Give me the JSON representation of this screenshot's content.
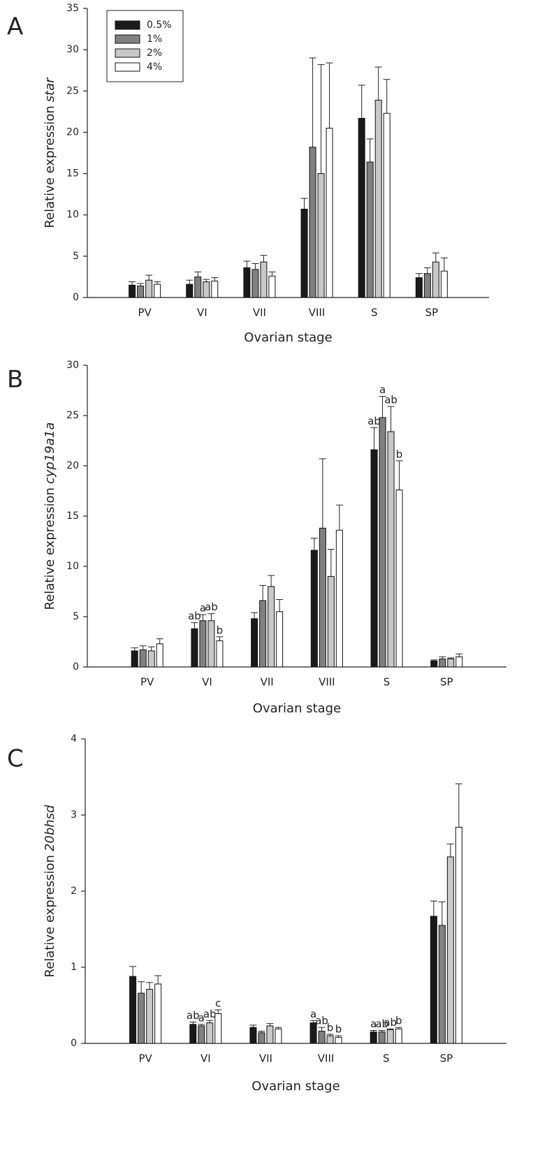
{
  "chart_data": [
    {
      "type": "bar",
      "panel": "A",
      "ylabel": "Relative expression",
      "ylabel_italic": "star",
      "xlabel": "Ovarian stage",
      "categories": [
        "PV",
        "VI",
        "VII",
        "VIII",
        "S",
        "SP"
      ],
      "ylim": [
        0,
        35
      ],
      "yticks": [
        0,
        5,
        10,
        15,
        20,
        25,
        30,
        35
      ],
      "legend": "upper left",
      "series": [
        {
          "name": "0.5%",
          "color": "#1a1a1a",
          "values": [
            1.5,
            1.6,
            3.6,
            10.7,
            21.7,
            2.4
          ],
          "errors": [
            0.4,
            0.5,
            0.8,
            1.3,
            4.0,
            0.5
          ]
        },
        {
          "name": "1%",
          "color": "#808080",
          "values": [
            1.4,
            2.5,
            3.4,
            18.2,
            16.4,
            2.9
          ],
          "errors": [
            0.3,
            0.6,
            0.7,
            10.8,
            2.8,
            0.7
          ]
        },
        {
          "name": "2%",
          "color": "#c8c8c8",
          "values": [
            2.1,
            1.9,
            4.3,
            15.0,
            23.9,
            4.3
          ],
          "errors": [
            0.6,
            0.3,
            0.8,
            13.2,
            4.0,
            1.1
          ]
        },
        {
          "name": "4%",
          "color": "#ffffff",
          "values": [
            1.6,
            2.0,
            2.6,
            20.5,
            22.3,
            3.2
          ],
          "errors": [
            0.3,
            0.4,
            0.5,
            7.9,
            4.1,
            1.6
          ]
        }
      ]
    },
    {
      "type": "bar",
      "panel": "B",
      "ylabel": "Relative expression",
      "ylabel_italic": "cyp19a1a",
      "xlabel": "Ovarian stage",
      "categories": [
        "PV",
        "VI",
        "VII",
        "VIII",
        "S",
        "SP"
      ],
      "ylim": [
        0,
        30
      ],
      "yticks": [
        0,
        5,
        10,
        15,
        20,
        25,
        30
      ],
      "series": [
        {
          "color": "#1a1a1a",
          "values": [
            1.6,
            3.8,
            4.8,
            11.6,
            21.6,
            0.6
          ],
          "errors": [
            0.3,
            0.6,
            0.6,
            1.2,
            2.2,
            0.1
          ],
          "letters": [
            null,
            "ab",
            null,
            null,
            "ab",
            null
          ]
        },
        {
          "color": "#808080",
          "values": [
            1.7,
            4.6,
            6.6,
            13.8,
            24.8,
            0.8
          ],
          "errors": [
            0.4,
            0.6,
            1.5,
            6.9,
            2.1,
            0.2
          ],
          "letters": [
            null,
            "a",
            null,
            null,
            "a",
            null
          ]
        },
        {
          "color": "#c8c8c8",
          "values": [
            1.6,
            4.6,
            8.0,
            9.0,
            23.4,
            0.8
          ],
          "errors": [
            0.4,
            0.7,
            1.1,
            2.7,
            2.5,
            0.1
          ],
          "letters": [
            null,
            "ab",
            null,
            null,
            "ab",
            null
          ]
        },
        {
          "color": "#ffffff",
          "values": [
            2.3,
            2.6,
            5.5,
            13.6,
            17.6,
            1.0
          ],
          "errors": [
            0.5,
            0.4,
            1.2,
            2.5,
            2.9,
            0.3
          ],
          "letters": [
            null,
            "b",
            null,
            null,
            "b",
            null
          ]
        }
      ]
    },
    {
      "type": "bar",
      "panel": "C",
      "ylabel": "Relative expression",
      "ylabel_italic": "20bhsd",
      "xlabel": "Ovarian stage",
      "categories": [
        "PV",
        "VI",
        "VII",
        "VIII",
        "S",
        "SP"
      ],
      "ylim": [
        0,
        4
      ],
      "yticks": [
        0,
        1,
        2,
        3,
        4
      ],
      "series": [
        {
          "color": "#1a1a1a",
          "values": [
            0.88,
            0.25,
            0.21,
            0.27,
            0.15,
            1.67
          ],
          "errors": [
            0.13,
            0.03,
            0.03,
            0.03,
            0.02,
            0.2
          ],
          "letters": [
            null,
            "ab",
            null,
            "a",
            "a",
            null
          ]
        },
        {
          "color": "#808080",
          "values": [
            0.66,
            0.23,
            0.14,
            0.16,
            0.15,
            1.55
          ],
          "errors": [
            0.15,
            0.02,
            0.02,
            0.05,
            0.02,
            0.31
          ],
          "letters": [
            null,
            "a",
            null,
            "ab",
            "ab",
            null
          ]
        },
        {
          "color": "#c8c8c8",
          "values": [
            0.71,
            0.27,
            0.23,
            0.1,
            0.18,
            2.45
          ],
          "errors": [
            0.09,
            0.03,
            0.03,
            0.02,
            0.01,
            0.17
          ],
          "letters": [
            null,
            "ab",
            null,
            "b",
            "ab",
            null
          ]
        },
        {
          "color": "#ffffff",
          "values": [
            0.78,
            0.39,
            0.19,
            0.08,
            0.19,
            2.84
          ],
          "errors": [
            0.11,
            0.05,
            0.02,
            0.02,
            0.02,
            0.57
          ],
          "letters": [
            null,
            "c",
            null,
            "b",
            "b",
            null
          ]
        }
      ]
    }
  ]
}
